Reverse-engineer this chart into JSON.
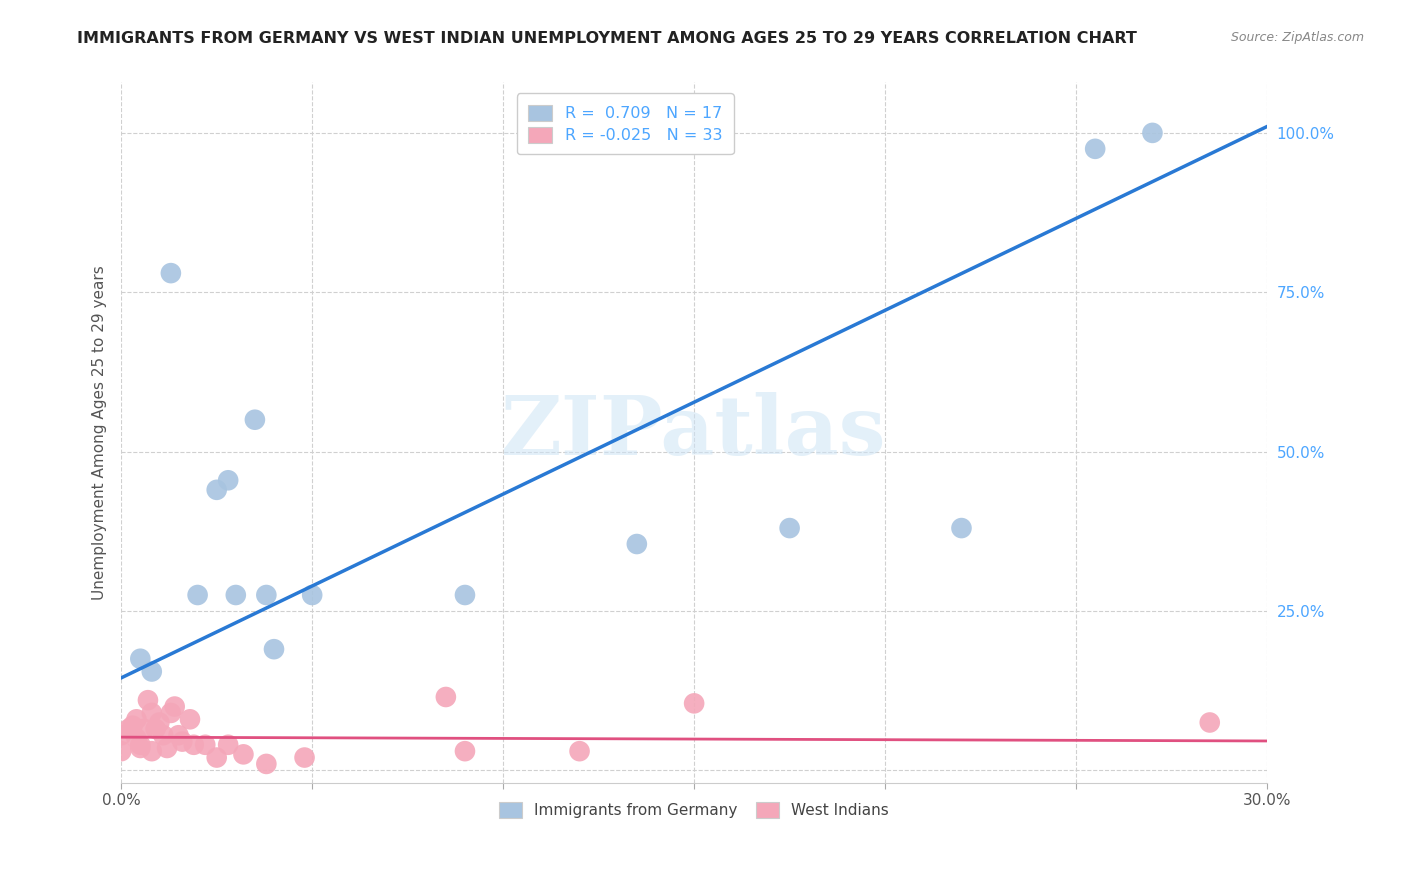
{
  "title": "IMMIGRANTS FROM GERMANY VS WEST INDIAN UNEMPLOYMENT AMONG AGES 25 TO 29 YEARS CORRELATION CHART",
  "source": "Source: ZipAtlas.com",
  "ylabel": "Unemployment Among Ages 25 to 29 years",
  "xlim": [
    0.0,
    0.3
  ],
  "ylim": [
    -0.02,
    1.08
  ],
  "xticks": [
    0.0,
    0.05,
    0.1,
    0.15,
    0.2,
    0.25,
    0.3
  ],
  "yticks": [
    0.0,
    0.25,
    0.5,
    0.75,
    1.0
  ],
  "germany_color": "#a8c4e0",
  "westindian_color": "#f4a7b9",
  "germany_line_color": "#2979d4",
  "westindian_line_color": "#e05080",
  "germany_R": 0.709,
  "germany_N": 17,
  "westindian_R": -0.025,
  "westindian_N": 33,
  "watermark": "ZIPatlas",
  "germany_scatter": [
    [
      0.005,
      0.175
    ],
    [
      0.008,
      0.155
    ],
    [
      0.013,
      0.78
    ],
    [
      0.02,
      0.275
    ],
    [
      0.025,
      0.44
    ],
    [
      0.028,
      0.455
    ],
    [
      0.03,
      0.275
    ],
    [
      0.035,
      0.55
    ],
    [
      0.038,
      0.275
    ],
    [
      0.04,
      0.19
    ],
    [
      0.05,
      0.275
    ],
    [
      0.09,
      0.275
    ],
    [
      0.135,
      0.355
    ],
    [
      0.175,
      0.38
    ],
    [
      0.22,
      0.38
    ],
    [
      0.255,
      0.975
    ],
    [
      0.27,
      1.0
    ]
  ],
  "westindian_scatter": [
    [
      0.0,
      0.03
    ],
    [
      0.0,
      0.055
    ],
    [
      0.002,
      0.065
    ],
    [
      0.003,
      0.07
    ],
    [
      0.004,
      0.08
    ],
    [
      0.004,
      0.05
    ],
    [
      0.005,
      0.04
    ],
    [
      0.005,
      0.035
    ],
    [
      0.006,
      0.065
    ],
    [
      0.007,
      0.11
    ],
    [
      0.008,
      0.03
    ],
    [
      0.008,
      0.09
    ],
    [
      0.009,
      0.065
    ],
    [
      0.01,
      0.075
    ],
    [
      0.011,
      0.055
    ],
    [
      0.012,
      0.035
    ],
    [
      0.013,
      0.09
    ],
    [
      0.014,
      0.1
    ],
    [
      0.015,
      0.055
    ],
    [
      0.016,
      0.045
    ],
    [
      0.018,
      0.08
    ],
    [
      0.019,
      0.04
    ],
    [
      0.022,
      0.04
    ],
    [
      0.025,
      0.02
    ],
    [
      0.028,
      0.04
    ],
    [
      0.032,
      0.025
    ],
    [
      0.038,
      0.01
    ],
    [
      0.048,
      0.02
    ],
    [
      0.085,
      0.115
    ],
    [
      0.09,
      0.03
    ],
    [
      0.12,
      0.03
    ],
    [
      0.15,
      0.105
    ],
    [
      0.285,
      0.075
    ]
  ],
  "germany_trendline": [
    [
      0.0,
      0.145
    ],
    [
      0.3,
      1.01
    ]
  ],
  "westindian_trendline": [
    [
      0.0,
      0.052
    ],
    [
      0.3,
      0.046
    ]
  ]
}
